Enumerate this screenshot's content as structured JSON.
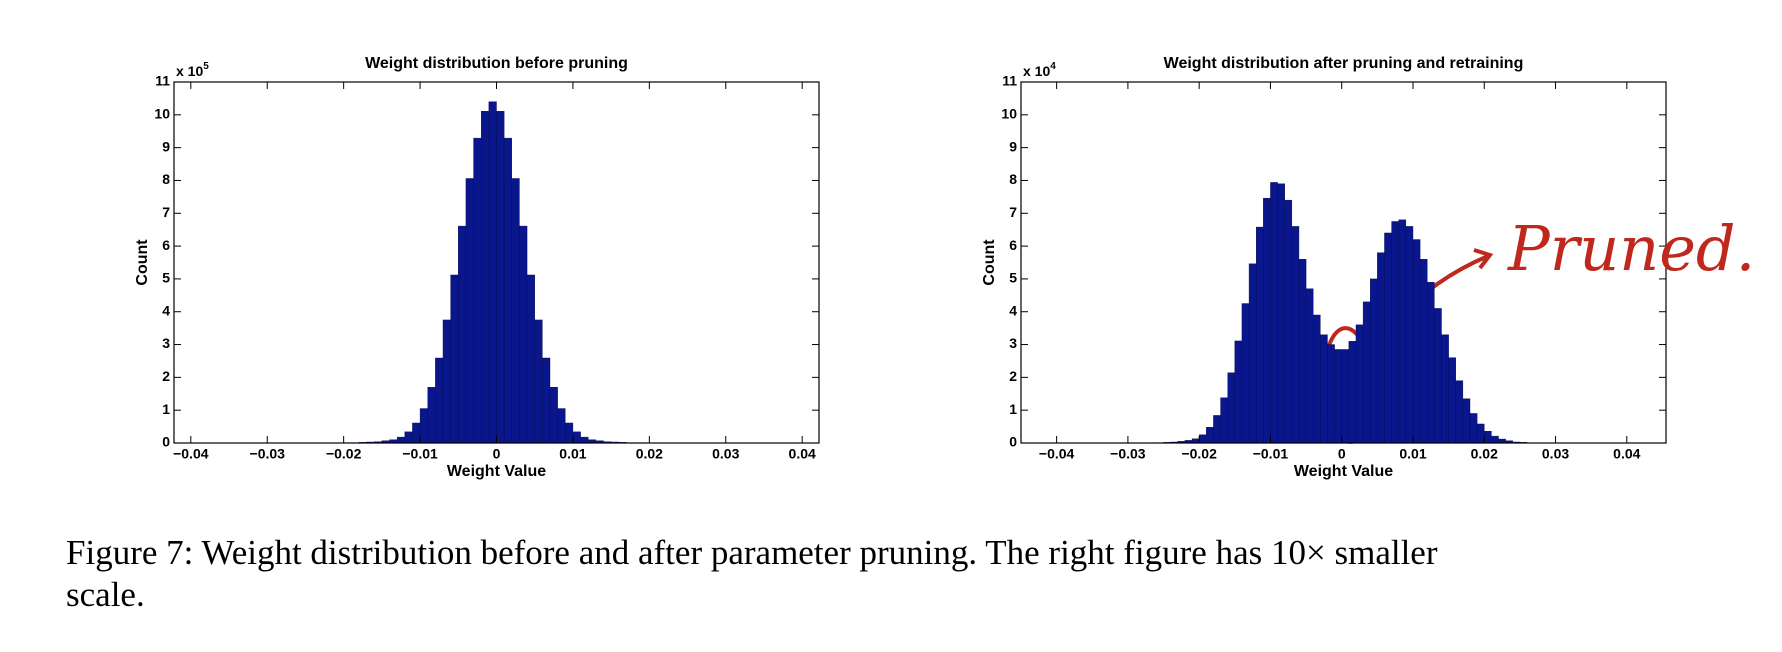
{
  "chart_data": [
    {
      "type": "histogram",
      "title": "Weight distribution before pruning",
      "xlabel": "Weight Value",
      "ylabel": "Count",
      "y_multiplier": {
        "base": "x 10",
        "exponent": "5"
      },
      "color": "#0a168c",
      "bins": [
        -0.02,
        -0.019,
        -0.018,
        -0.017,
        -0.016,
        -0.015,
        -0.014,
        -0.013,
        -0.012,
        -0.011,
        -0.01,
        -0.009,
        -0.008,
        -0.007,
        -0.006,
        -0.005,
        -0.004,
        -0.003,
        -0.002,
        -0.001,
        0,
        0.001,
        0.002,
        0.003,
        0.004,
        0.005,
        0.006,
        0.007,
        0.008,
        0.009,
        0.01,
        0.011,
        0.012,
        0.013,
        0.014,
        0.015,
        0.016,
        0.017,
        0.018,
        0.019,
        0.02
      ],
      "counts": [
        0.01,
        0.01,
        0.02,
        0.03,
        0.04,
        0.07,
        0.1,
        0.18,
        0.34,
        0.61,
        1.05,
        1.7,
        2.59,
        3.75,
        5.12,
        6.61,
        8.06,
        9.29,
        10.11,
        10.4,
        10.11,
        9.29,
        8.06,
        6.61,
        5.12,
        3.75,
        2.59,
        1.7,
        1.05,
        0.61,
        0.34,
        0.18,
        0.1,
        0.07,
        0.04,
        0.03,
        0.02,
        0.01,
        0.01,
        0.01
      ],
      "xlim": [
        -0.0422,
        0.0422
      ],
      "ylim": [
        0,
        11
      ],
      "xticks": [
        {
          "value": -0.04,
          "label": "−0.04"
        },
        {
          "value": -0.03,
          "label": "−0.03"
        },
        {
          "value": -0.02,
          "label": "−0.02"
        },
        {
          "value": -0.01,
          "label": "−0.01"
        },
        0,
        0.01,
        0.02,
        0.03,
        0.04
      ],
      "yticks": [
        0,
        1,
        2,
        3,
        4,
        5,
        6,
        7,
        8,
        9,
        10,
        11
      ]
    },
    {
      "type": "histogram",
      "title": "Weight distribution after pruning and retraining",
      "xlabel": "Weight Value",
      "ylabel": "Count",
      "y_multiplier": {
        "base": "x 10",
        "exponent": "4"
      },
      "color": "#0a168c",
      "bins": [
        -0.026,
        -0.025,
        -0.024,
        -0.023,
        -0.022,
        -0.021,
        -0.02,
        -0.019,
        -0.018,
        -0.017,
        -0.016,
        -0.015,
        -0.014,
        -0.013,
        -0.012,
        -0.011,
        -0.01,
        -0.009,
        -0.008,
        -0.007,
        -0.006,
        -0.005,
        -0.004,
        -0.003,
        -0.002,
        -0.001,
        0,
        0.001,
        0.002,
        0.003,
        0.004,
        0.005,
        0.006,
        0.007,
        0.008,
        0.009,
        0.01,
        0.011,
        0.012,
        0.013,
        0.014,
        0.015,
        0.016,
        0.017,
        0.018,
        0.019,
        0.02,
        0.021,
        0.022,
        0.023,
        0.024,
        0.025,
        0.026
      ],
      "counts": [
        0.01,
        0.02,
        0.03,
        0.05,
        0.08,
        0.13,
        0.25,
        0.48,
        0.84,
        1.38,
        2.14,
        3.11,
        4.25,
        5.46,
        6.58,
        7.46,
        7.94,
        7.9,
        7.4,
        6.6,
        5.6,
        4.7,
        3.9,
        3.3,
        3.0,
        2.85,
        2.85,
        3.1,
        3.6,
        4.3,
        5.0,
        5.8,
        6.4,
        6.75,
        6.8,
        6.6,
        6.2,
        5.6,
        4.9,
        4.1,
        3.3,
        2.6,
        1.9,
        1.35,
        0.9,
        0.58,
        0.36,
        0.21,
        0.12,
        0.07,
        0.03,
        0.02
      ],
      "xlim": [
        -0.045,
        0.0455
      ],
      "ylim": [
        0,
        11
      ],
      "xticks": [
        {
          "value": -0.04,
          "label": "−0.04"
        },
        {
          "value": -0.03,
          "label": "−0.03"
        },
        {
          "value": -0.02,
          "label": "−0.02"
        },
        {
          "value": -0.01,
          "label": "−0.01"
        },
        0,
        0.01,
        0.02,
        0.03,
        0.04
      ],
      "yticks": [
        0,
        1,
        2,
        3,
        4,
        5,
        6,
        7,
        8,
        9,
        10,
        11
      ],
      "annotation": "Pruned."
    }
  ],
  "caption": [
    "Figure 7: Weight distribution before and after parameter pruning. The right figure has 10× smaller",
    "scale."
  ]
}
